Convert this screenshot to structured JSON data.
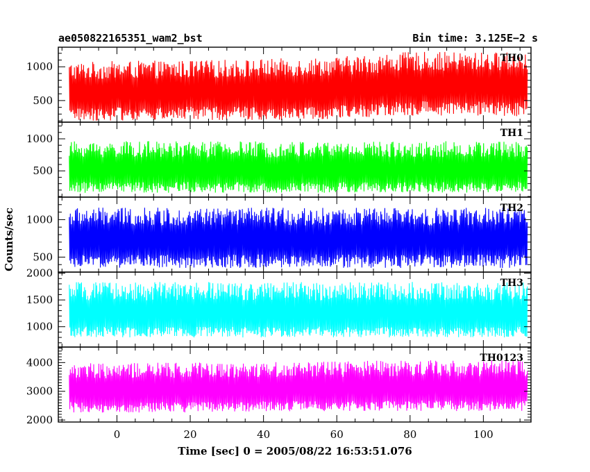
{
  "header": {
    "obs_id": "ae050822165351_wam2_bst",
    "bin_time": "Bin time: 3.125E−2 s"
  },
  "chart_data": [
    {
      "type": "line",
      "panel_label": "TH0",
      "color": "#ff0000",
      "x_range": [
        -16,
        113
      ],
      "ylim": [
        180,
        1290
      ],
      "yticks": [
        500,
        1000
      ],
      "band": {
        "x": [
          -16,
          0,
          20,
          40,
          60,
          80,
          100,
          112
        ],
        "low": [
          250,
          250,
          260,
          260,
          280,
          330,
          330,
          320
        ],
        "mean": [
          560,
          580,
          590,
          600,
          620,
          680,
          700,
          700
        ],
        "high": [
          1000,
          1020,
          1030,
          1050,
          1080,
          1150,
          1150,
          1150
        ]
      }
    },
    {
      "type": "line",
      "panel_label": "TH1",
      "color": "#00ff00",
      "x_range": [
        -16,
        113
      ],
      "ylim": [
        90,
        1260
      ],
      "yticks": [
        500,
        1000
      ],
      "band": {
        "x": [
          -16,
          0,
          20,
          40,
          60,
          80,
          100,
          112
        ],
        "low": [
          200,
          200,
          200,
          200,
          200,
          200,
          200,
          200
        ],
        "mean": [
          480,
          480,
          480,
          480,
          480,
          480,
          480,
          480
        ],
        "high": [
          900,
          900,
          900,
          900,
          900,
          900,
          900,
          900
        ]
      }
    },
    {
      "type": "line",
      "panel_label": "TH2",
      "color": "#0000ff",
      "x_range": [
        -16,
        113
      ],
      "ylim": [
        300,
        1300
      ],
      "yticks": [
        500,
        1000
      ],
      "band": {
        "x": [
          -16,
          0,
          20,
          40,
          60,
          80,
          100,
          112
        ],
        "low": [
          400,
          400,
          400,
          400,
          400,
          400,
          400,
          400
        ],
        "mean": [
          700,
          700,
          700,
          700,
          700,
          700,
          700,
          700
        ],
        "high": [
          1100,
          1100,
          1100,
          1100,
          1100,
          1100,
          1100,
          1100
        ]
      }
    },
    {
      "type": "line",
      "panel_label": "TH3",
      "color": "#00ffff",
      "x_range": [
        -16,
        113
      ],
      "ylim": [
        620,
        2020
      ],
      "yticks": [
        1000,
        1500,
        2000
      ],
      "band": {
        "x": [
          -16,
          0,
          20,
          40,
          60,
          80,
          100,
          112
        ],
        "low": [
          850,
          850,
          850,
          850,
          850,
          850,
          850,
          850
        ],
        "mean": [
          1180,
          1180,
          1180,
          1180,
          1180,
          1180,
          1180,
          1180
        ],
        "high": [
          1750,
          1750,
          1750,
          1750,
          1750,
          1750,
          1750,
          1750
        ]
      }
    },
    {
      "type": "line",
      "panel_label": "TH0123",
      "color": "#ff00ff",
      "x_range": [
        -16,
        113
      ],
      "ylim": [
        1930,
        4540
      ],
      "yticks": [
        2000,
        3000,
        4000
      ],
      "band": {
        "x": [
          -16,
          0,
          20,
          40,
          60,
          80,
          100,
          112
        ],
        "low": [
          2350,
          2350,
          2350,
          2380,
          2400,
          2400,
          2400,
          2400
        ],
        "mean": [
          2950,
          2950,
          2960,
          2980,
          3000,
          3010,
          3010,
          3010
        ],
        "high": [
          3850,
          3850,
          3870,
          3900,
          3920,
          3950,
          3950,
          3950
        ]
      }
    }
  ],
  "x_axis": {
    "range": [
      -16,
      113
    ],
    "ticks": [
      0,
      20,
      40,
      60,
      80,
      100
    ],
    "label": "Time [sec] 0 = 2005/08/22 16:53:51.076"
  },
  "y_axis": {
    "label": "Counts/sec"
  }
}
